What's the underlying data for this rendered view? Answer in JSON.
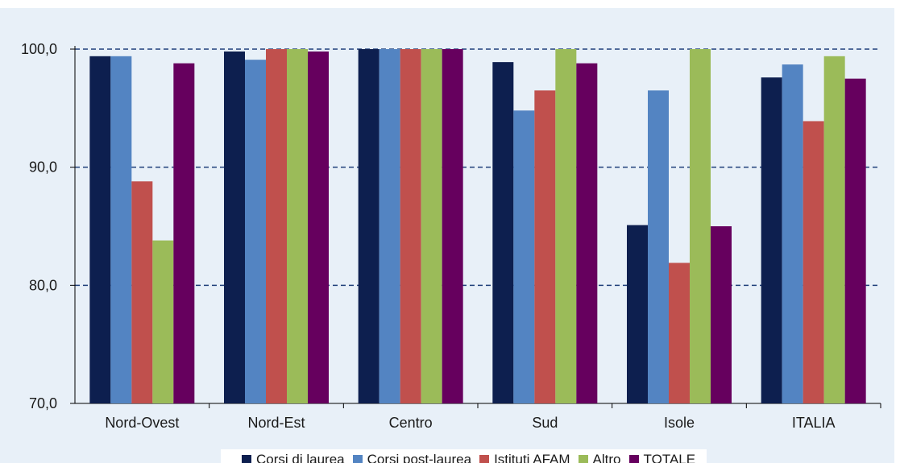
{
  "chart_data": {
    "type": "bar",
    "title": "",
    "xlabel": "",
    "ylabel": "",
    "ylim": [
      70,
      100
    ],
    "yticks": [
      "70,0",
      "80,0",
      "90,0",
      "100,0"
    ],
    "ytick_values": [
      70,
      80,
      90,
      100
    ],
    "grid": "dashed horizontal",
    "legend_position": "bottom",
    "categories": [
      "Nord-Ovest",
      "Nord-Est",
      "Centro",
      "Sud",
      "Isole",
      "ITALIA"
    ],
    "series": [
      {
        "name": "Corsi di laurea",
        "color": "#0d1f4f",
        "values": [
          99.4,
          99.8,
          100.0,
          98.9,
          85.1,
          97.6
        ]
      },
      {
        "name": "Corsi post-laurea",
        "color": "#5384c2",
        "values": [
          99.4,
          99.1,
          100.0,
          94.8,
          96.5,
          98.7
        ]
      },
      {
        "name": "Istituti AFAM",
        "color": "#c0504d",
        "values": [
          88.8,
          100.0,
          100.0,
          96.5,
          81.9,
          93.9
        ]
      },
      {
        "name": "Altro",
        "color": "#9bbb59",
        "values": [
          83.8,
          100.0,
          100.0,
          100.0,
          100.0,
          99.4
        ]
      },
      {
        "name": "TOTALE",
        "color": "#66005e",
        "values": [
          98.8,
          99.8,
          100.0,
          98.8,
          85.0,
          97.5
        ]
      }
    ]
  }
}
